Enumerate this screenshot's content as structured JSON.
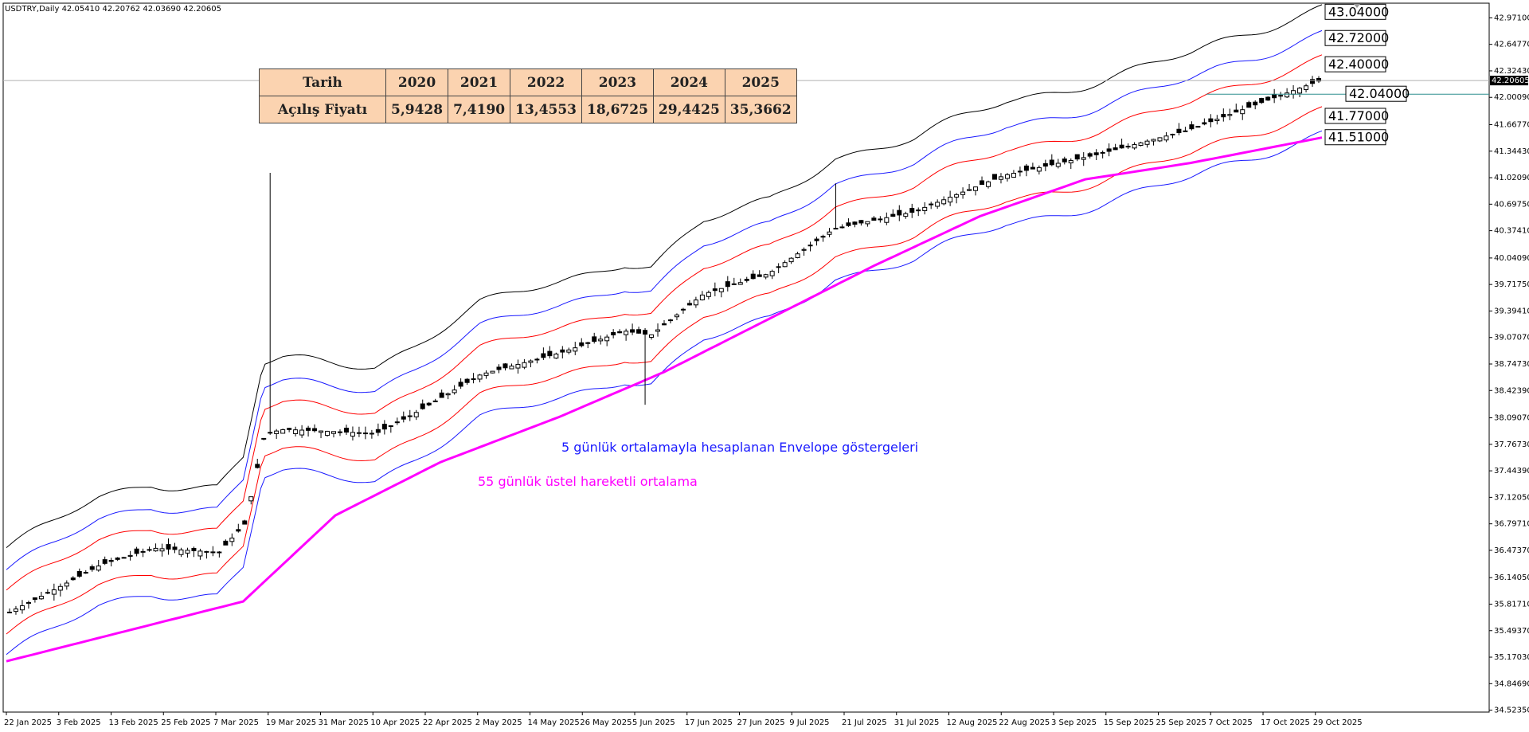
{
  "header": {
    "symbol": "USDTRY,Daily",
    "ohlc": "42.05410 42.20762 42.03690 42.20605"
  },
  "table": {
    "row1_label": "Tarih",
    "row2_label": "Açılış Fiyatı",
    "years": [
      "2020",
      "2021",
      "2022",
      "2023",
      "2024",
      "2025"
    ],
    "values": [
      "5,9428",
      "7,4190",
      "13,4553",
      "18,6725",
      "29,4425",
      "35,3662"
    ]
  },
  "annotations": {
    "envelope_note": "5 günlük ortalamayla hesaplanan Envelope göstergeleri",
    "ema_note": "55 günlük üstel hareketli ortalama"
  },
  "colors": {
    "envelope_outer": "#000000",
    "envelope_blue": "#1a1aff",
    "envelope_red": "#ff0000",
    "ema": "#ff00ff",
    "envelope_note": "#1a1aff",
    "ema_note": "#ff00ff"
  },
  "chart_data": {
    "type": "candlestick",
    "symbol": "USDTRY",
    "timeframe": "Daily",
    "ylim": [
      34.5,
      43.15
    ],
    "y_ticks": [
      "42.97100",
      "42.64770",
      "42.32430",
      "42.00090",
      "41.66770",
      "41.34430",
      "41.02090",
      "40.69750",
      "40.37410",
      "40.04090",
      "39.71750",
      "39.39410",
      "39.07070",
      "38.74730",
      "38.42390",
      "38.09070",
      "37.76730",
      "37.44390",
      "37.12050",
      "36.79710",
      "36.47370",
      "36.14050",
      "35.81710",
      "35.49370",
      "35.17030",
      "34.84690",
      "34.52350"
    ],
    "x_ticks": [
      "22 Jan 2025",
      "3 Feb 2025",
      "13 Feb 2025",
      "25 Feb 2025",
      "7 Mar 2025",
      "19 Mar 2025",
      "31 Mar 2025",
      "10 Apr 2025",
      "22 Apr 2025",
      "2 May 2025",
      "14 May 2025",
      "26 May 2025",
      "5 Jun 2025",
      "17 Jun 2025",
      "27 Jun 2025",
      "9 Jul 2025",
      "21 Jul 2025",
      "31 Jul 2025",
      "12 Aug 2025",
      "22 Aug 2025",
      "3 Sep 2025",
      "15 Sep 2025",
      "25 Sep 2025",
      "7 Oct 2025",
      "17 Oct 2025",
      "29 Oct 2025"
    ],
    "current_price": "42.20605",
    "envelope_levels": [
      {
        "label": "43.04000",
        "value": 43.04,
        "color": "#000000"
      },
      {
        "label": "42.72000",
        "value": 42.72,
        "color": "#1a1aff"
      },
      {
        "label": "42.40000",
        "value": 42.4,
        "color": "#ff0000"
      },
      {
        "label": "42.04000",
        "value": 42.04,
        "color": "#000000"
      },
      {
        "label": "41.77000",
        "value": 41.77,
        "color": "#ff0000"
      },
      {
        "label": "41.51000",
        "value": 41.51,
        "color": "#1a1aff"
      }
    ],
    "close_path": [
      {
        "t": 0.0,
        "v": 35.72
      },
      {
        "t": 0.035,
        "v": 36.0
      },
      {
        "t": 0.07,
        "v": 36.3
      },
      {
        "t": 0.11,
        "v": 36.5
      },
      {
        "t": 0.16,
        "v": 36.45
      },
      {
        "t": 0.18,
        "v": 36.8
      },
      {
        "t": 0.195,
        "v": 37.9
      },
      {
        "t": 0.21,
        "v": 37.95
      },
      {
        "t": 0.28,
        "v": 37.9
      },
      {
        "t": 0.31,
        "v": 38.15
      },
      {
        "t": 0.36,
        "v": 38.62
      },
      {
        "t": 0.42,
        "v": 38.88
      },
      {
        "t": 0.47,
        "v": 39.15
      },
      {
        "t": 0.49,
        "v": 39.1
      },
      {
        "t": 0.53,
        "v": 39.6
      },
      {
        "t": 0.58,
        "v": 39.85
      },
      {
        "t": 0.63,
        "v": 40.4
      },
      {
        "t": 0.69,
        "v": 40.6
      },
      {
        "t": 0.76,
        "v": 41.05
      },
      {
        "t": 0.83,
        "v": 41.3
      },
      {
        "t": 0.9,
        "v": 41.6
      },
      {
        "t": 0.95,
        "v": 41.9
      },
      {
        "t": 1.0,
        "v": 42.2
      }
    ],
    "ema55_path": [
      {
        "t": 0.0,
        "v": 35.12
      },
      {
        "t": 0.18,
        "v": 35.85
      },
      {
        "t": 0.25,
        "v": 36.9
      },
      {
        "t": 0.33,
        "v": 37.55
      },
      {
        "t": 0.42,
        "v": 38.1
      },
      {
        "t": 0.5,
        "v": 38.65
      },
      {
        "t": 0.58,
        "v": 39.3
      },
      {
        "t": 0.66,
        "v": 39.95
      },
      {
        "t": 0.74,
        "v": 40.55
      },
      {
        "t": 0.82,
        "v": 41.0
      },
      {
        "t": 0.9,
        "v": 41.2
      },
      {
        "t": 1.0,
        "v": 41.51
      }
    ],
    "envelope_offsets": {
      "outer": 0.022,
      "middle": 0.0145,
      "inner": 0.0075
    },
    "candle_count": 207
  }
}
